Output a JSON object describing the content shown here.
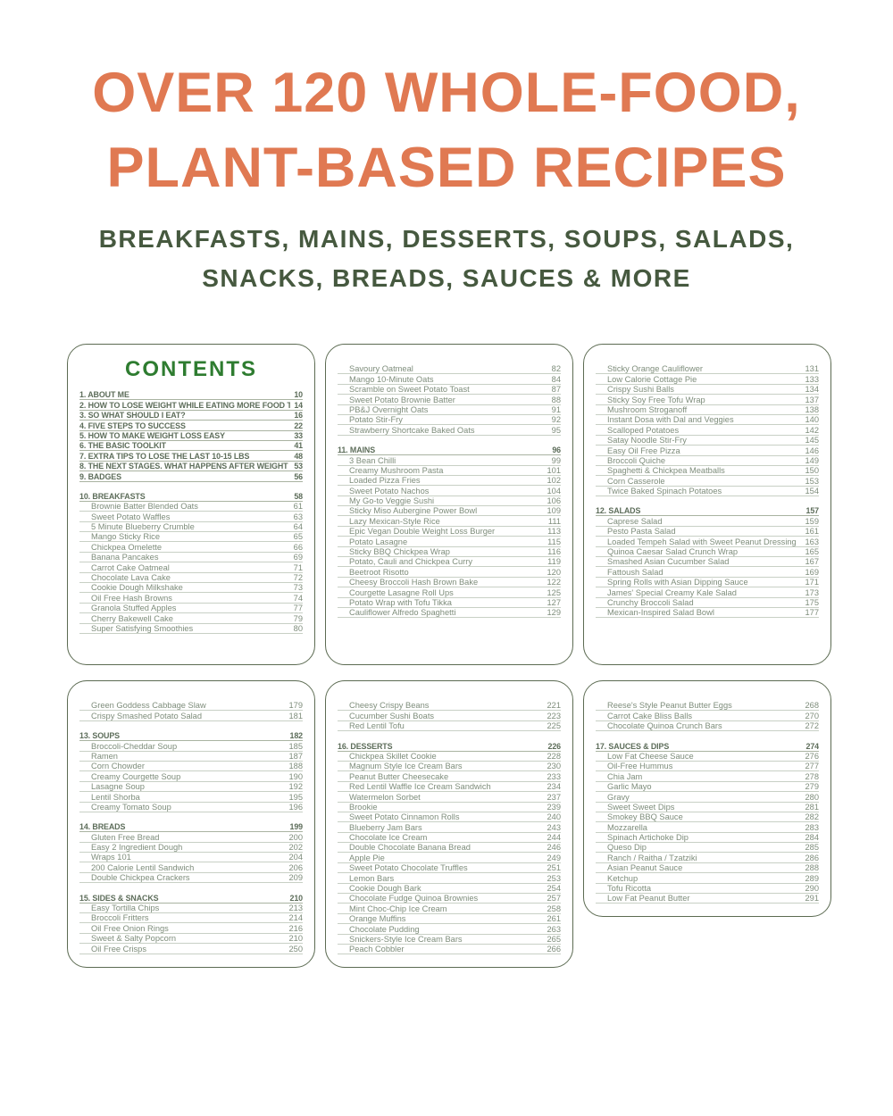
{
  "header": {
    "title_line1": "OVER 120 WHOLE-FOOD,",
    "title_line2": "PLANT-BASED RECIPES",
    "subtitle_line1": "BREAKFASTS, MAINS, DESSERTS, SOUPS, SALADS,",
    "subtitle_line2": "SNACKS, BREADS, SAUCES & MORE",
    "title_color": "#E07952",
    "subtitle_color": "#46593F"
  },
  "colors": {
    "panel_border": "#5c6b52",
    "contents_heading": "#2e7c30",
    "chapter_text": "#5d6d5a",
    "item_text": "#7e8d7b",
    "leader_line": "#c8d0c5"
  },
  "panels": [
    {
      "heading": "CONTENTS",
      "rows": [
        {
          "type": "chapter",
          "label": "1. ABOUT ME",
          "page": "10"
        },
        {
          "type": "chapter",
          "label": "2. HOW TO LOSE WEIGHT WHILE EATING MORE FOOD THAN EVER",
          "page": "14"
        },
        {
          "type": "chapter",
          "label": "3. SO WHAT SHOULD I EAT?",
          "page": "16"
        },
        {
          "type": "chapter",
          "label": "4. FIVE STEPS TO SUCCESS",
          "page": "22"
        },
        {
          "type": "chapter",
          "label": "5. HOW TO MAKE WEIGHT LOSS EASY",
          "page": "33"
        },
        {
          "type": "chapter",
          "label": "6. THE BASIC TOOLKIT",
          "page": "41"
        },
        {
          "type": "chapter",
          "label": "7. EXTRA TIPS TO LOSE THE LAST 10-15 LBS",
          "page": "48"
        },
        {
          "type": "chapter",
          "label": "8. THE NEXT STAGES. WHAT HAPPENS AFTER WEIGHT LOSS?",
          "page": "53"
        },
        {
          "type": "chapter",
          "label": "9. BADGES",
          "page": "56"
        },
        {
          "type": "gap"
        },
        {
          "type": "chapter",
          "label": "10. BREAKFASTS",
          "page": "58"
        },
        {
          "type": "item",
          "label": "Brownie Batter Blended Oats",
          "page": "61"
        },
        {
          "type": "item",
          "label": "Sweet Potato Waffles",
          "page": "63"
        },
        {
          "type": "item",
          "label": "5 Minute Blueberry Crumble",
          "page": "64"
        },
        {
          "type": "item",
          "label": "Mango Sticky Rice",
          "page": "65"
        },
        {
          "type": "item",
          "label": "Chickpea Omelette",
          "page": "66"
        },
        {
          "type": "item",
          "label": "Banana Pancakes",
          "page": "69"
        },
        {
          "type": "item",
          "label": "Carrot Cake Oatmeal",
          "page": "71"
        },
        {
          "type": "item",
          "label": "Chocolate Lava Cake",
          "page": "72"
        },
        {
          "type": "item",
          "label": "Cookie Dough Milkshake",
          "page": "73"
        },
        {
          "type": "item",
          "label": "Oil Free Hash Browns",
          "page": "74"
        },
        {
          "type": "item",
          "label": "Granola Stuffed Apples",
          "page": "77"
        },
        {
          "type": "item",
          "label": "Cherry Bakewell Cake",
          "page": "79"
        },
        {
          "type": "item",
          "label": "Super Satisfying Smoothies",
          "page": "80"
        }
      ]
    },
    {
      "rows": [
        {
          "type": "item",
          "label": "Savoury Oatmeal",
          "page": "82"
        },
        {
          "type": "item",
          "label": "Mango 10-Minute Oats",
          "page": "84"
        },
        {
          "type": "item",
          "label": "Scramble on Sweet Potato Toast",
          "page": "87"
        },
        {
          "type": "item",
          "label": "Sweet Potato Brownie Batter",
          "page": "88"
        },
        {
          "type": "item",
          "label": "PB&J Overnight Oats",
          "page": "91"
        },
        {
          "type": "item",
          "label": "Potato Stir-Fry",
          "page": "92"
        },
        {
          "type": "item",
          "label": "Strawberry Shortcake Baked Oats",
          "page": "95"
        },
        {
          "type": "gap"
        },
        {
          "type": "chapter",
          "label": "11. MAINS",
          "page": "96"
        },
        {
          "type": "item",
          "label": "3 Bean Chilli",
          "page": "99"
        },
        {
          "type": "item",
          "label": "Creamy Mushroom Pasta",
          "page": "101"
        },
        {
          "type": "item",
          "label": "Loaded Pizza Fries",
          "page": "102"
        },
        {
          "type": "item",
          "label": "Sweet Potato Nachos",
          "page": "104"
        },
        {
          "type": "item",
          "label": "My Go-to Veggie Sushi",
          "page": "106"
        },
        {
          "type": "item",
          "label": "Sticky Miso Aubergine Power Bowl",
          "page": "109"
        },
        {
          "type": "item",
          "label": "Lazy Mexican-Style Rice",
          "page": "111"
        },
        {
          "type": "item",
          "label": "Epic Vegan Double Weight Loss Burger",
          "page": "113"
        },
        {
          "type": "item",
          "label": "Potato Lasagne",
          "page": "115"
        },
        {
          "type": "item",
          "label": "Sticky BBQ Chickpea Wrap",
          "page": "116"
        },
        {
          "type": "item",
          "label": "Potato, Cauli and Chickpea Curry",
          "page": "119"
        },
        {
          "type": "item",
          "label": "Beetroot Risotto",
          "page": "120"
        },
        {
          "type": "item",
          "label": "Cheesy Broccoli Hash Brown Bake",
          "page": "122"
        },
        {
          "type": "item",
          "label": "Courgette Lasagne Roll Ups",
          "page": "125"
        },
        {
          "type": "item",
          "label": "Potato Wrap with Tofu Tikka",
          "page": "127"
        },
        {
          "type": "item",
          "label": "Cauliflower Alfredo Spaghetti",
          "page": "129"
        }
      ]
    },
    {
      "rows": [
        {
          "type": "item",
          "label": "Sticky Orange Cauliflower",
          "page": "131"
        },
        {
          "type": "item",
          "label": "Low Calorie Cottage Pie",
          "page": "133"
        },
        {
          "type": "item",
          "label": "Crispy Sushi Balls",
          "page": "134"
        },
        {
          "type": "item",
          "label": "Sticky Soy Free Tofu Wrap",
          "page": "137"
        },
        {
          "type": "item",
          "label": "Mushroom Stroganoff",
          "page": "138"
        },
        {
          "type": "item",
          "label": "Instant Dosa with Dal and Veggies",
          "page": "140"
        },
        {
          "type": "item",
          "label": "Scalloped Potatoes",
          "page": "142"
        },
        {
          "type": "item",
          "label": "Satay Noodle Stir-Fry",
          "page": "145"
        },
        {
          "type": "item",
          "label": "Easy Oil Free Pizza",
          "page": "146"
        },
        {
          "type": "item",
          "label": "Broccoli Quiche",
          "page": "149"
        },
        {
          "type": "item",
          "label": "Spaghetti & Chickpea Meatballs",
          "page": "150"
        },
        {
          "type": "item",
          "label": "Corn Casserole",
          "page": "153"
        },
        {
          "type": "item",
          "label": "Twice Baked Spinach Potatoes",
          "page": "154"
        },
        {
          "type": "gap"
        },
        {
          "type": "chapter",
          "label": "12. SALADS",
          "page": "157"
        },
        {
          "type": "item",
          "label": "Caprese Salad",
          "page": "159"
        },
        {
          "type": "item",
          "label": "Pesto Pasta Salad",
          "page": "161"
        },
        {
          "type": "item",
          "label": "Loaded Tempeh Salad with Sweet Peanut Dressing",
          "page": "163"
        },
        {
          "type": "item",
          "label": "Quinoa Caesar Salad Crunch Wrap",
          "page": "165"
        },
        {
          "type": "item",
          "label": "Smashed Asian Cucumber Salad",
          "page": "167"
        },
        {
          "type": "item",
          "label": "Fattoush Salad",
          "page": "169"
        },
        {
          "type": "item",
          "label": "Spring Rolls with Asian Dipping Sauce",
          "page": "171"
        },
        {
          "type": "item",
          "label": "James' Special Creamy Kale Salad",
          "page": "173"
        },
        {
          "type": "item",
          "label": "Crunchy Broccoli Salad",
          "page": "175"
        },
        {
          "type": "item",
          "label": "Mexican-Inspired Salad Bowl",
          "page": "177"
        }
      ]
    },
    {
      "rows": [
        {
          "type": "item",
          "label": "Green Goddess Cabbage Slaw",
          "page": "179"
        },
        {
          "type": "item",
          "label": "Crispy Smashed Potato Salad",
          "page": "181"
        },
        {
          "type": "gap"
        },
        {
          "type": "chapter",
          "label": "13. SOUPS",
          "page": "182"
        },
        {
          "type": "item",
          "label": "Broccoli-Cheddar Soup",
          "page": "185"
        },
        {
          "type": "item",
          "label": "Ramen",
          "page": "187"
        },
        {
          "type": "item",
          "label": "Corn Chowder",
          "page": "188"
        },
        {
          "type": "item",
          "label": "Creamy Courgette Soup",
          "page": "190"
        },
        {
          "type": "item",
          "label": "Lasagne Soup",
          "page": "192"
        },
        {
          "type": "item",
          "label": "Lentil Shorba",
          "page": "195"
        },
        {
          "type": "item",
          "label": "Creamy Tomato Soup",
          "page": "196"
        },
        {
          "type": "gap"
        },
        {
          "type": "chapter",
          "label": "14. BREADS",
          "page": "199"
        },
        {
          "type": "item",
          "label": "Gluten Free Bread",
          "page": "200"
        },
        {
          "type": "item",
          "label": "Easy 2 Ingredient Dough",
          "page": "202"
        },
        {
          "type": "item",
          "label": "Wraps 101",
          "page": "204"
        },
        {
          "type": "item",
          "label": "200 Calorie Lentil Sandwich",
          "page": "206"
        },
        {
          "type": "item",
          "label": "Double Chickpea Crackers",
          "page": "209"
        },
        {
          "type": "gap"
        },
        {
          "type": "chapter",
          "label": "15. SIDES & SNACKS",
          "page": "210"
        },
        {
          "type": "item",
          "label": "Easy Tortilla Chips",
          "page": "213"
        },
        {
          "type": "item",
          "label": "Broccoli Fritters",
          "page": "214"
        },
        {
          "type": "item",
          "label": "Oil Free Onion Rings",
          "page": "216"
        },
        {
          "type": "item",
          "label": "Sweet & Salty Popcorn",
          "page": "210"
        },
        {
          "type": "item",
          "label": "Oil Free Crisps",
          "page": "250"
        }
      ]
    },
    {
      "rows": [
        {
          "type": "item",
          "label": "Cheesy Crispy Beans",
          "page": "221"
        },
        {
          "type": "item",
          "label": "Cucumber Sushi Boats",
          "page": "223"
        },
        {
          "type": "item",
          "label": "Red Lentil Tofu",
          "page": "225"
        },
        {
          "type": "gap"
        },
        {
          "type": "chapter",
          "label": "16. DESSERTS",
          "page": "226"
        },
        {
          "type": "item",
          "label": "Chickpea Skillet Cookie",
          "page": "228"
        },
        {
          "type": "item",
          "label": "Magnum Style Ice Cream Bars",
          "page": "230"
        },
        {
          "type": "item",
          "label": "Peanut Butter Cheesecake",
          "page": "233"
        },
        {
          "type": "item",
          "label": "Red Lentil Waffle Ice Cream Sandwich",
          "page": "234"
        },
        {
          "type": "item",
          "label": "Watermelon Sorbet",
          "page": "237"
        },
        {
          "type": "item",
          "label": "Brookie",
          "page": "239"
        },
        {
          "type": "item",
          "label": "Sweet Potato Cinnamon Rolls",
          "page": "240"
        },
        {
          "type": "item",
          "label": "Blueberry Jam Bars",
          "page": "243"
        },
        {
          "type": "item",
          "label": "Chocolate Ice Cream",
          "page": "244"
        },
        {
          "type": "item",
          "label": "Double Chocolate Banana Bread",
          "page": "246"
        },
        {
          "type": "item",
          "label": "Apple Pie",
          "page": "249"
        },
        {
          "type": "item",
          "label": "Sweet Potato Chocolate Truffles",
          "page": "251"
        },
        {
          "type": "item",
          "label": "Lemon Bars",
          "page": "253"
        },
        {
          "type": "item",
          "label": "Cookie Dough Bark",
          "page": "254"
        },
        {
          "type": "item",
          "label": "Chocolate Fudge Quinoa Brownies",
          "page": "257"
        },
        {
          "type": "item",
          "label": "Mint Choc-Chip Ice Cream",
          "page": "258"
        },
        {
          "type": "item",
          "label": "Orange Muffins",
          "page": "261"
        },
        {
          "type": "item",
          "label": "Chocolate Pudding",
          "page": "263"
        },
        {
          "type": "item",
          "label": "Snickers-Style Ice Cream Bars",
          "page": "265"
        },
        {
          "type": "item",
          "label": "Peach Cobbler",
          "page": "266"
        }
      ]
    },
    {
      "rows": [
        {
          "type": "item",
          "label": "Reese's Style Peanut Butter Eggs",
          "page": "268"
        },
        {
          "type": "item",
          "label": "Carrot Cake Bliss Balls",
          "page": "270"
        },
        {
          "type": "item",
          "label": "Chocolate Quinoa Crunch Bars",
          "page": "272"
        },
        {
          "type": "gap"
        },
        {
          "type": "chapter",
          "label": "17. SAUCES & DIPS",
          "page": "274"
        },
        {
          "type": "item",
          "label": "Low Fat Cheese Sauce",
          "page": "276"
        },
        {
          "type": "item",
          "label": "Oil-Free Hummus",
          "page": "277"
        },
        {
          "type": "item",
          "label": "Chia Jam",
          "page": "278"
        },
        {
          "type": "item",
          "label": "Garlic Mayo",
          "page": "279"
        },
        {
          "type": "item",
          "label": "Gravy",
          "page": "280"
        },
        {
          "type": "item",
          "label": "Sweet Sweet Dips",
          "page": "281"
        },
        {
          "type": "item",
          "label": "Smokey BBQ Sauce",
          "page": "282"
        },
        {
          "type": "item",
          "label": "Mozzarella",
          "page": "283"
        },
        {
          "type": "item",
          "label": "Spinach Artichoke Dip",
          "page": "284"
        },
        {
          "type": "item",
          "label": "Queso Dip",
          "page": "285"
        },
        {
          "type": "item",
          "label": "Ranch / Raitha / Tzatziki",
          "page": "286"
        },
        {
          "type": "item",
          "label": "Asian Peanut Sauce",
          "page": "288"
        },
        {
          "type": "item",
          "label": "Ketchup",
          "page": "289"
        },
        {
          "type": "item",
          "label": "Tofu Ricotta",
          "page": "290"
        },
        {
          "type": "item",
          "label": "Low Fat Peanut Butter",
          "page": "291"
        }
      ]
    }
  ]
}
